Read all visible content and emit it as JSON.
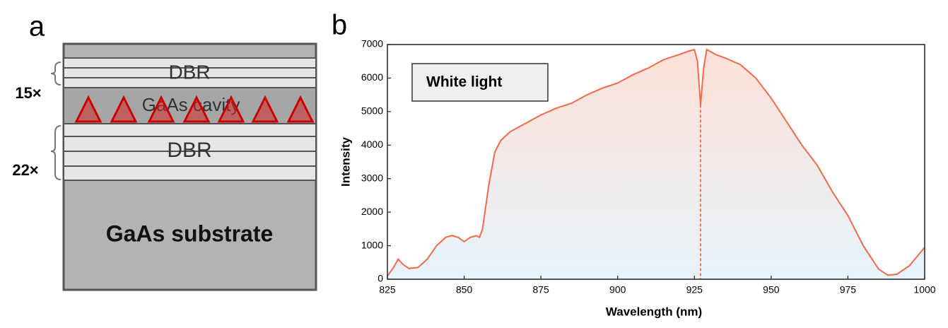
{
  "panel_a": {
    "label": "a",
    "top_layer": "DBR",
    "cavity_layer": "GaAs cavity",
    "bottom_layer": "DBR",
    "substrate_layer": "GaAs substrate",
    "top_repeats": "15×",
    "bottom_repeats": "22×"
  },
  "chart_data": {
    "type": "line",
    "panel_label": "b",
    "x_label": "Wavelength (nm)",
    "y_label": "Intensity",
    "x": [
      825,
      827,
      828.5,
      830,
      832,
      835,
      838,
      841,
      844,
      846,
      848,
      850,
      852,
      854,
      855,
      856,
      858,
      860,
      862,
      865,
      870,
      875,
      880,
      885,
      890,
      895,
      900,
      905,
      910,
      915,
      920,
      923,
      925,
      926,
      927,
      928,
      929,
      932,
      935,
      940,
      945,
      950,
      955,
      960,
      965,
      970,
      975,
      980,
      985,
      988,
      991,
      995,
      1000
    ],
    "series": [
      {
        "name": "White light",
        "color": "#f26a4a",
        "values": [
          100,
          350,
          600,
          450,
          320,
          350,
          600,
          1000,
          1250,
          1300,
          1250,
          1120,
          1250,
          1300,
          1250,
          1500,
          2800,
          3800,
          4150,
          4400,
          4650,
          4900,
          5100,
          5250,
          5500,
          5700,
          5850,
          6100,
          6300,
          6550,
          6700,
          6800,
          6850,
          6500,
          5200,
          6300,
          6850,
          6700,
          6600,
          6400,
          6000,
          5400,
          4700,
          4000,
          3400,
          2600,
          1900,
          1000,
          300,
          120,
          150,
          400,
          950
        ]
      }
    ],
    "marker_x": 927,
    "xlim": [
      825,
      1000
    ],
    "xticks": [
      825,
      850,
      875,
      900,
      925,
      950,
      975,
      1000
    ],
    "ylim": [
      0,
      7000
    ],
    "yticks": [
      0,
      1000,
      2000,
      3000,
      4000,
      5000,
      6000,
      7000
    ]
  }
}
